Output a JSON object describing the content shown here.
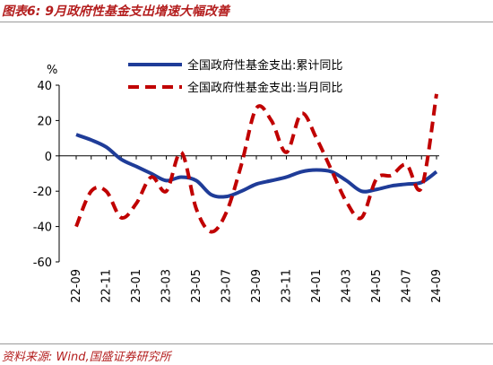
{
  "figure": {
    "title": "图表6: 9月政府性基金支出增速大幅改善",
    "source": "资料来源: Wind,国盛证券研究所"
  },
  "chart_data": {
    "type": "line",
    "ylabel": "%",
    "ylim": [
      -60,
      40
    ],
    "yticks": [
      40,
      20,
      0,
      -20,
      -40,
      -60
    ],
    "grid": false,
    "legend_position": "top",
    "x": [
      "22-09",
      "22-10",
      "22-11",
      "22-12",
      "23-01",
      "23-02",
      "23-03",
      "23-04",
      "23-05",
      "23-06",
      "23-07",
      "23-08",
      "23-09",
      "23-10",
      "23-11",
      "23-12",
      "24-01",
      "24-02",
      "24-03",
      "24-04",
      "24-05",
      "24-06",
      "24-07",
      "24-08",
      "24-09"
    ],
    "xticks": [
      "22-09",
      "22-11",
      "23-01",
      "23-03",
      "23-05",
      "23-07",
      "23-09",
      "23-11",
      "24-01",
      "24-03",
      "24-05",
      "24-07",
      "24-09"
    ],
    "series": [
      {
        "name": "全国政府性基金支出:累计同比",
        "color": "#1f3c98",
        "style": "solid",
        "values": [
          12,
          9,
          5,
          -2,
          -6,
          -10,
          -14,
          -12,
          -14,
          -22,
          -23,
          -20,
          -16,
          -14,
          -12,
          -9,
          -8,
          -9,
          -14,
          -20,
          -19,
          -17,
          -16,
          -15,
          -9
        ]
      },
      {
        "name": "全国政府性基金支出:当月同比",
        "color": "#c00000",
        "style": "dashed",
        "values": [
          -40,
          -20,
          -20,
          -35,
          -27,
          -12,
          -20,
          2,
          -30,
          -43,
          -32,
          -5,
          27,
          20,
          2,
          24,
          10,
          -8,
          -26,
          -35,
          -13,
          -11,
          -5,
          -18,
          35
        ]
      }
    ]
  }
}
